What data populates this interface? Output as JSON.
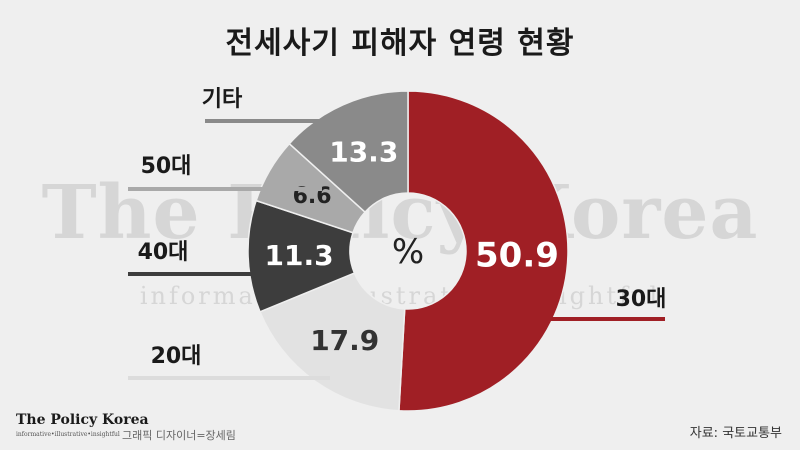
{
  "title": "전세사기 피해자 연령 현황",
  "watermark": {
    "main": "The Policy Korea",
    "sub": "informative•illustrative•insightful"
  },
  "footer": {
    "logo": "The Policy Korea",
    "logo_tagline": "informative•illustrative•insightful",
    "designer": "그래픽 디자이너=장세림",
    "source": "자료: 국토교통부"
  },
  "chart_data": {
    "type": "pie",
    "center_label": "%",
    "slices": [
      {
        "label": "30대",
        "value": 50.9,
        "value_label": "50.9",
        "color": "#a01f25",
        "text_color": "#ffffff"
      },
      {
        "label": "20대",
        "value": 17.9,
        "value_label": "17.9",
        "color": "#e2e2e2",
        "text_color": "#333333"
      },
      {
        "label": "40대",
        "value": 11.3,
        "value_label": "11.3",
        "color": "#3d3d3d",
        "text_color": "#ffffff"
      },
      {
        "label": "50대",
        "value": 6.6,
        "value_label": "6.6",
        "color": "#a9a9a9",
        "text_color": "#222222"
      },
      {
        "label": "기타",
        "value": 13.3,
        "value_label": "13.3",
        "color": "#8a8a8a",
        "text_color": "#ffffff"
      }
    ]
  }
}
